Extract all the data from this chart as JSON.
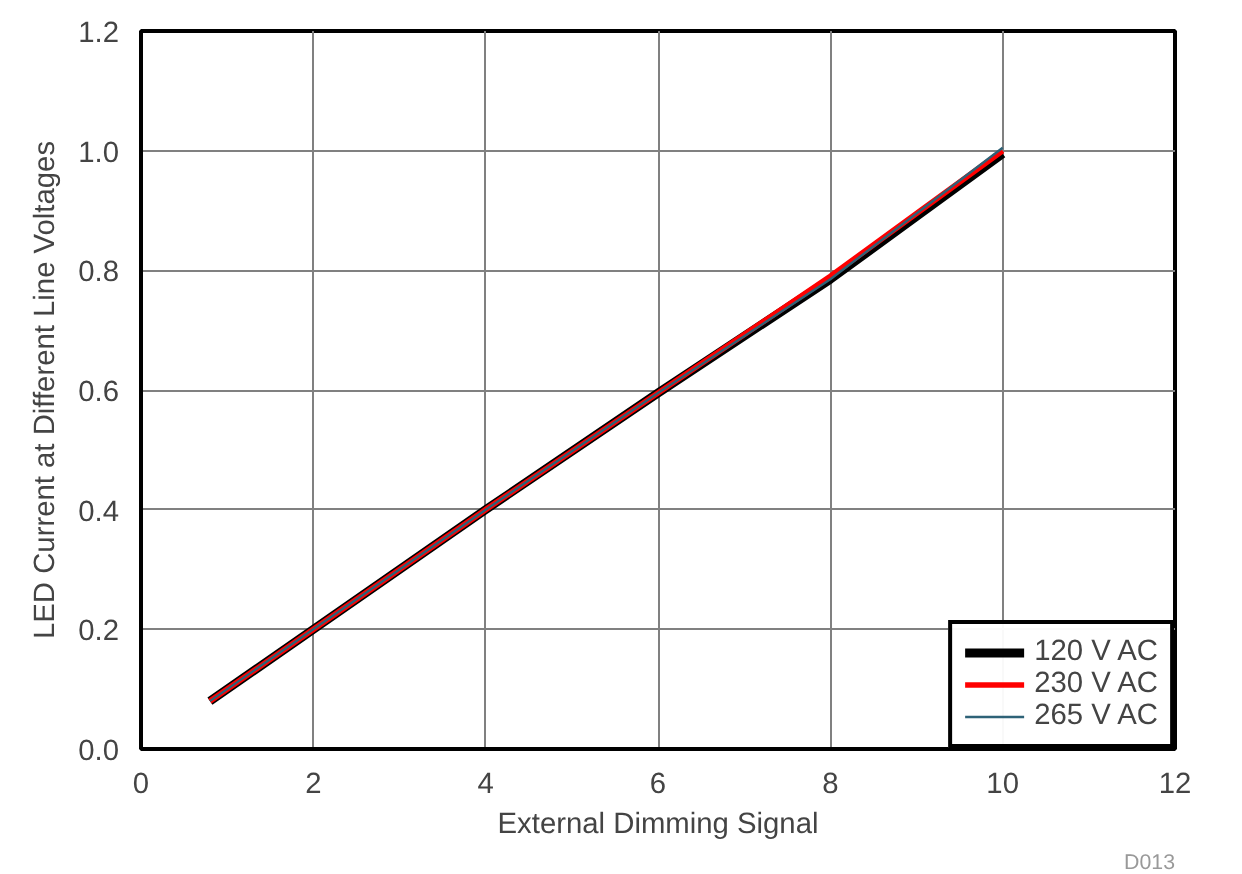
{
  "chart_data": {
    "type": "line",
    "xlabel": "External Dimming Signal",
    "ylabel": "LED Current at Different Line Voltages",
    "x": [
      0.8,
      2,
      4,
      6,
      8,
      9,
      10
    ],
    "series": [
      {
        "name": "120 V AC",
        "color": "#000000",
        "values": [
          0.08,
          0.2,
          0.4,
          0.595,
          0.785,
          0.89,
          0.995
        ]
      },
      {
        "name": "230 V AC",
        "color": "#ff0000",
        "values": [
          0.08,
          0.2,
          0.4,
          0.595,
          0.79,
          0.895,
          1.0
        ]
      },
      {
        "name": "265 V AC",
        "color": "#2e6277",
        "values": [
          0.08,
          0.2,
          0.4,
          0.595,
          0.785,
          0.895,
          1.005
        ]
      }
    ],
    "xlim": [
      0,
      12
    ],
    "xticks": [
      0,
      2,
      4,
      6,
      8,
      10,
      12
    ],
    "ylim": [
      0,
      1.2
    ],
    "yticks": [
      {
        "value": 0,
        "label": "0.0"
      },
      {
        "value": 0.2,
        "label": "0.2"
      },
      {
        "value": 0.4,
        "label": "0.4"
      },
      {
        "value": 0.6,
        "label": "0.6"
      },
      {
        "value": 0.8,
        "label": "0.8"
      },
      {
        "value": 1.0,
        "label": "1.0"
      },
      {
        "value": 1.2,
        "label": "1.2"
      }
    ],
    "grid": true,
    "legend": "bottom right",
    "marker": "none",
    "line_style": "solid",
    "annotations": [
      "D013"
    ]
  }
}
